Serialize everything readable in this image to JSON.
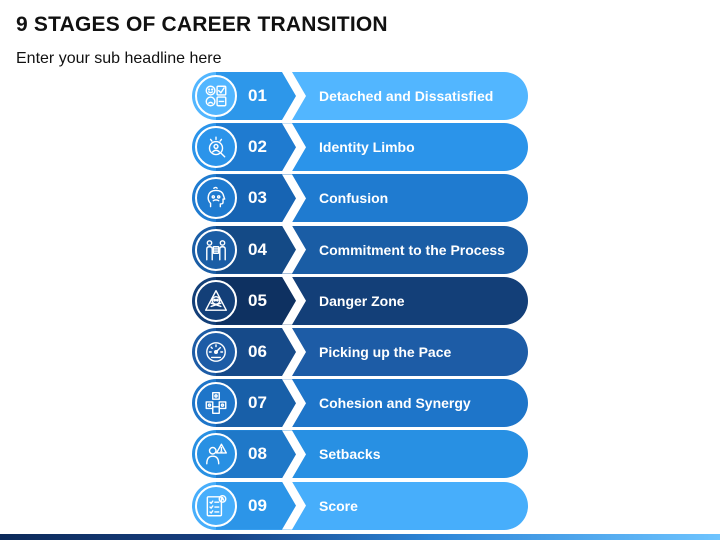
{
  "header": {
    "title": "9 STAGES OF CAREER TRANSITION",
    "subtitle": "Enter your sub headline here"
  },
  "stages": [
    {
      "number": "01",
      "label": "Detached and Dissatisfied",
      "icon": "emoji-checklist-icon",
      "color": "#52b6ff",
      "dark": "#2d97ea"
    },
    {
      "number": "02",
      "label": "Identity Limbo",
      "icon": "person-search-icon",
      "color": "#2b94ea",
      "dark": "#1f7bd0"
    },
    {
      "number": "03",
      "label": "Confusion",
      "icon": "confused-head-icon",
      "color": "#1f7bd0",
      "dark": "#1764b3"
    },
    {
      "number": "04",
      "label": "Commitment to the Process",
      "icon": "people-agreement-icon",
      "color": "#1a5da5",
      "dark": "#144a86"
    },
    {
      "number": "05",
      "label": "Danger Zone",
      "icon": "danger-skull-icon",
      "color": "#133f78",
      "dark": "#0e3161"
    },
    {
      "number": "06",
      "label": "Picking up the Pace",
      "icon": "speedometer-icon",
      "color": "#1d5ca6",
      "dark": "#164a89"
    },
    {
      "number": "07",
      "label": "Cohesion and Synergy",
      "icon": "team-cubes-icon",
      "color": "#1e75c9",
      "dark": "#185fa8"
    },
    {
      "number": "08",
      "label": "Setbacks",
      "icon": "person-warning-icon",
      "color": "#2890e3",
      "dark": "#1f78c8"
    },
    {
      "number": "09",
      "label": "Score",
      "icon": "scorecard-icon",
      "color": "#47aefb",
      "dark": "#2c95e8"
    }
  ]
}
